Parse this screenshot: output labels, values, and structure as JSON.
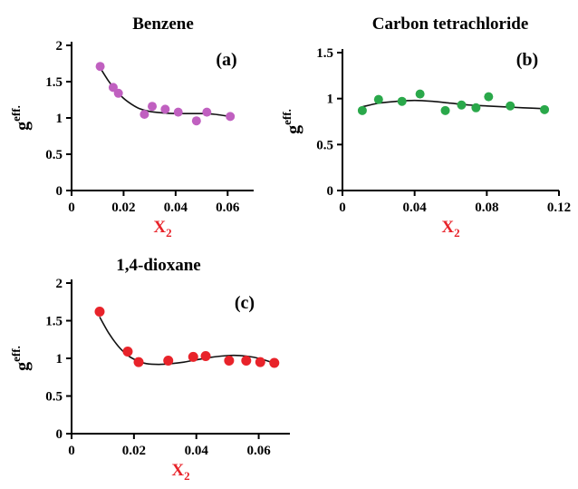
{
  "chart_data": [
    {
      "type": "scatter",
      "title": "Benzene",
      "panel_label": "(a)",
      "xlabel": "X",
      "xlabel_sub": "2",
      "ylabel": "g",
      "ylabel_sup": "eff.",
      "xlim": [
        0,
        0.07
      ],
      "ylim": [
        0,
        2
      ],
      "xticks": [
        0,
        0.02,
        0.04,
        0.06
      ],
      "xtick_labels": [
        "0",
        "0.02",
        "0.04",
        "0.06"
      ],
      "yticks": [
        0,
        0.5,
        1,
        1.5,
        2
      ],
      "ytick_labels": [
        "0",
        "0.5",
        "1",
        "1.5",
        "2"
      ],
      "marker_color": "#c060c0",
      "series": [
        {
          "x": [
            0.011,
            0.016,
            0.018,
            0.028,
            0.031,
            0.036,
            0.041,
            0.048,
            0.052,
            0.061
          ],
          "y": [
            1.71,
            1.42,
            1.34,
            1.05,
            1.16,
            1.12,
            1.08,
            0.96,
            1.08,
            1.02
          ]
        }
      ],
      "fit_curve": {
        "x": [
          0.011,
          0.014,
          0.017,
          0.02,
          0.023,
          0.026,
          0.03,
          0.035,
          0.04,
          0.045,
          0.05,
          0.055,
          0.061
        ],
        "y": [
          1.69,
          1.52,
          1.38,
          1.27,
          1.19,
          1.13,
          1.09,
          1.07,
          1.06,
          1.06,
          1.06,
          1.05,
          1.02
        ]
      }
    },
    {
      "type": "scatter",
      "title": "Carbon tetrachloride",
      "panel_label": "(b)",
      "xlabel": "X",
      "xlabel_sub": "2",
      "ylabel": "g",
      "ylabel_sup": "eff.",
      "xlim": [
        0,
        0.12
      ],
      "ylim": [
        0,
        1.5
      ],
      "xticks": [
        0,
        0.04,
        0.08,
        0.12
      ],
      "xtick_labels": [
        "0",
        "0.04",
        "0.08",
        "0.12"
      ],
      "yticks": [
        0,
        0.5,
        1,
        1.5
      ],
      "ytick_labels": [
        "0",
        "0.5",
        "1",
        "1.5"
      ],
      "marker_color": "#2aa84a",
      "series": [
        {
          "x": [
            0.011,
            0.02,
            0.033,
            0.043,
            0.057,
            0.066,
            0.074,
            0.081,
            0.093,
            0.112
          ],
          "y": [
            0.87,
            0.99,
            0.97,
            1.05,
            0.87,
            0.93,
            0.9,
            1.02,
            0.92,
            0.88
          ]
        }
      ],
      "fit_curve": {
        "x": [
          0.011,
          0.02,
          0.03,
          0.04,
          0.05,
          0.06,
          0.07,
          0.08,
          0.09,
          0.1,
          0.112
        ],
        "y": [
          0.91,
          0.95,
          0.97,
          0.98,
          0.97,
          0.95,
          0.93,
          0.92,
          0.91,
          0.9,
          0.89
        ]
      }
    },
    {
      "type": "scatter",
      "title": "1,4-dioxane",
      "panel_label": "(c)",
      "xlabel": "X",
      "xlabel_sub": "2",
      "ylabel": "g",
      "ylabel_sup": "eff.",
      "xlim": [
        0,
        0.07
      ],
      "ylim": [
        0,
        2
      ],
      "xticks": [
        0,
        0.02,
        0.04,
        0.06
      ],
      "xtick_labels": [
        "0",
        "0.02",
        "0.04",
        "0.06"
      ],
      "yticks": [
        0,
        0.5,
        1,
        1.5,
        2
      ],
      "ytick_labels": [
        "0",
        "0.5",
        "1",
        "1.5",
        "2"
      ],
      "marker_color": "#e8232a",
      "series": [
        {
          "x": [
            0.009,
            0.018,
            0.0215,
            0.031,
            0.039,
            0.043,
            0.0505,
            0.056,
            0.0605,
            0.065
          ],
          "y": [
            1.62,
            1.09,
            0.95,
            0.97,
            1.02,
            1.03,
            0.97,
            0.97,
            0.95,
            0.94
          ]
        }
      ],
      "fit_curve": {
        "x": [
          0.009,
          0.012,
          0.015,
          0.018,
          0.021,
          0.024,
          0.028,
          0.032,
          0.036,
          0.04,
          0.044,
          0.048,
          0.052,
          0.056,
          0.06,
          0.064,
          0.066
        ],
        "y": [
          1.55,
          1.33,
          1.16,
          1.04,
          0.97,
          0.93,
          0.92,
          0.93,
          0.95,
          0.98,
          1.01,
          1.03,
          1.04,
          1.03,
          1.0,
          0.95,
          0.92
        ]
      }
    }
  ]
}
